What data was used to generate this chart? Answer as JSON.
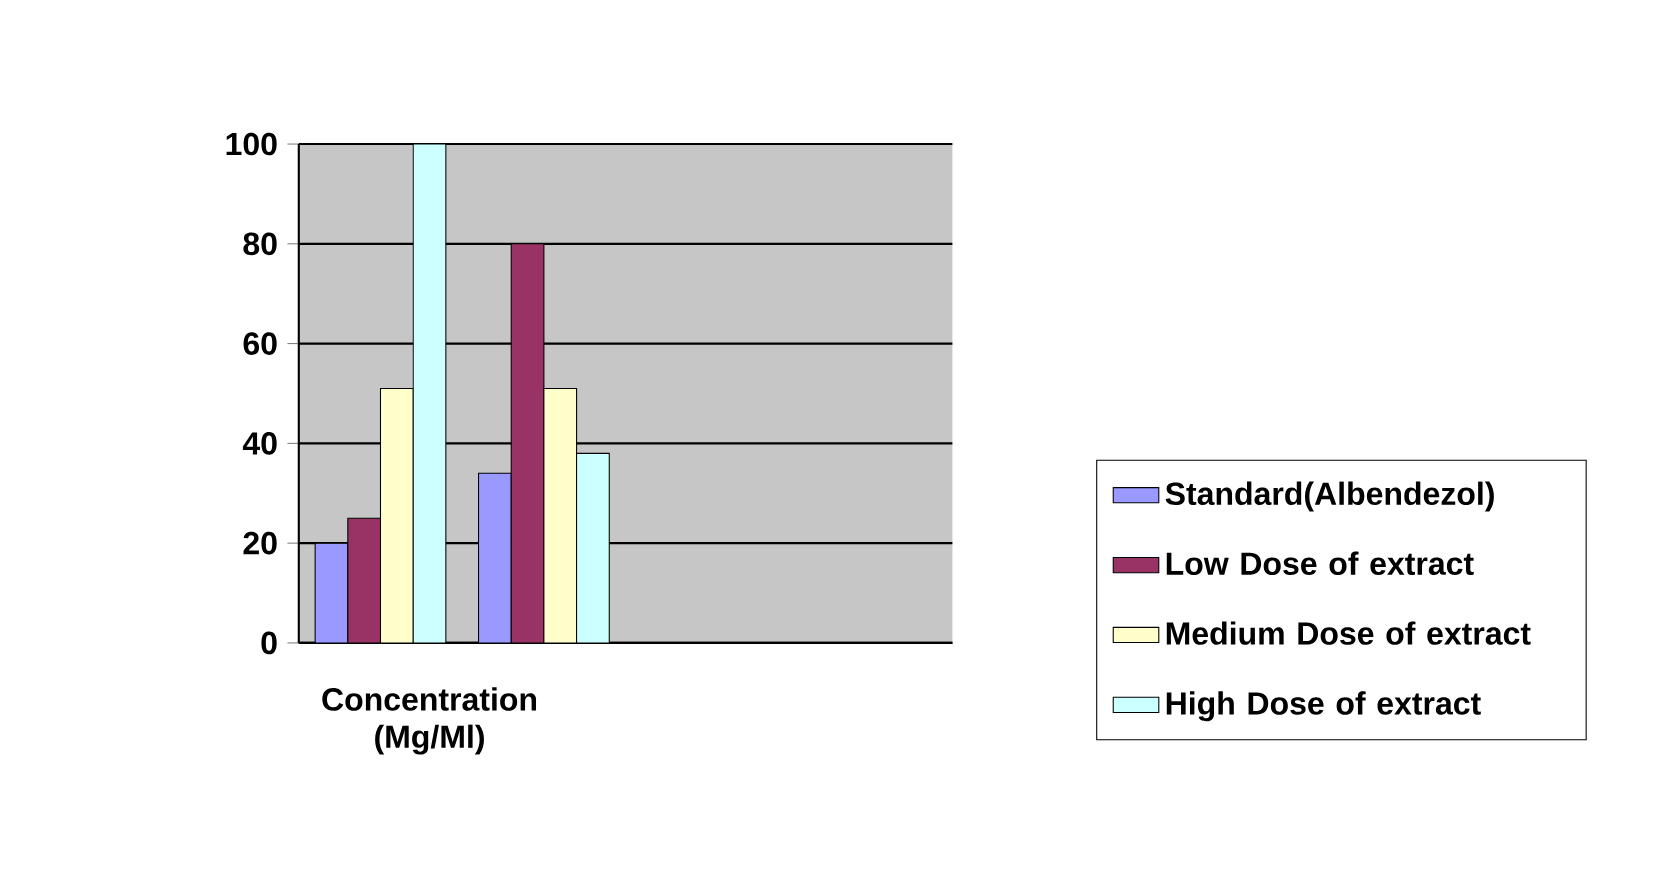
{
  "chart_data": {
    "type": "bar",
    "xlabel": "Concentration (Mg/Ml)",
    "categories": [
      null,
      null,
      null,
      null
    ],
    "series": [
      {
        "name": "Standard(Albendezol)",
        "color": "#9999ff",
        "values": [
          20,
          34,
          null,
          null
        ]
      },
      {
        "name": "Low Dose of extract",
        "color": "#993366",
        "values": [
          25,
          80,
          null,
          null
        ]
      },
      {
        "name": "Medium Dose of extract",
        "color": "#ffffcc",
        "values": [
          51,
          51,
          null,
          null
        ]
      },
      {
        "name": "High Dose of extract",
        "color": "#ccffff",
        "values": [
          100,
          38,
          null,
          null
        ]
      }
    ],
    "ylim": [
      0,
      100
    ],
    "yticks": [
      0,
      20,
      40,
      60,
      80,
      100
    ],
    "grid": "y",
    "legend": "right",
    "tick_labels": "y"
  }
}
